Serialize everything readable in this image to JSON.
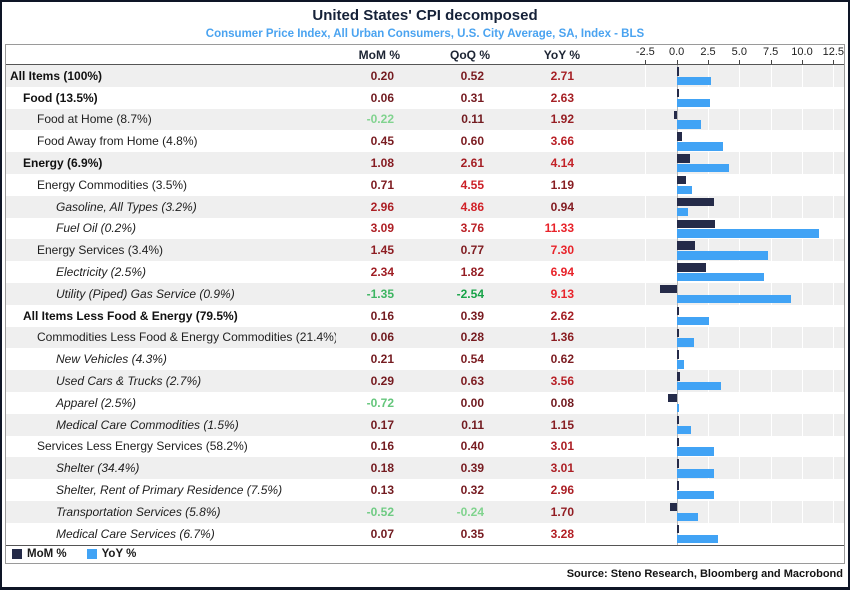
{
  "header": {
    "title": "United States' CPI decomposed",
    "subtitle": "Consumer Price Index, All Urban Consumers, U.S. City Average, SA, Index - BLS"
  },
  "columns": {
    "mom": "MoM %",
    "qoq": "QoQ %",
    "yoy": "YoY %"
  },
  "axis": {
    "xmin": -3.8,
    "xmax": 13.35,
    "ticks": [
      -2.5,
      0,
      2.5,
      5,
      7.5,
      10,
      12.5
    ],
    "tick_labels": [
      "-2.5",
      "0.0",
      "2.5",
      "5.0",
      "7.5",
      "10.0",
      "12.5"
    ]
  },
  "colors": {
    "mom_bar": "#252b49",
    "yoy_bar": "#41a3f5",
    "positive_low": "#701b20",
    "positive_high": "#e8232a",
    "negative_low": "#8ed998",
    "negative_high": "#18a348",
    "stripe": "#efefef",
    "title_navy": "#152138",
    "subtitle_blue": "#4aa3f0"
  },
  "rows": [
    {
      "label": "All Items (100%)",
      "level": 0,
      "bold": true,
      "values_bold": true,
      "italic": false,
      "mom": 0.2,
      "qoq": 0.52,
      "yoy": 2.71
    },
    {
      "label": "Food (13.5%)",
      "level": 1,
      "bold": true,
      "values_bold": false,
      "italic": false,
      "mom": 0.06,
      "qoq": 0.31,
      "yoy": 2.63
    },
    {
      "label": "Food at Home (8.7%)",
      "level": 2,
      "bold": false,
      "values_bold": false,
      "italic": false,
      "mom": -0.22,
      "qoq": 0.11,
      "yoy": 1.92
    },
    {
      "label": "Food Away from Home (4.8%)",
      "level": 2,
      "bold": false,
      "values_bold": false,
      "italic": false,
      "mom": 0.45,
      "qoq": 0.6,
      "yoy": 3.66
    },
    {
      "label": "Energy (6.9%)",
      "level": 1,
      "bold": true,
      "values_bold": true,
      "italic": false,
      "mom": 1.08,
      "qoq": 2.61,
      "yoy": 4.14
    },
    {
      "label": "Energy Commodities (3.5%)",
      "level": 2,
      "bold": false,
      "values_bold": false,
      "italic": false,
      "mom": 0.71,
      "qoq": 4.55,
      "yoy": 1.19
    },
    {
      "label": "Gasoline, All Types (3.2%)",
      "level": 3,
      "bold": false,
      "values_bold": false,
      "italic": true,
      "mom": 2.96,
      "qoq": 4.86,
      "yoy": 0.94
    },
    {
      "label": "Fuel Oil (0.2%)",
      "level": 3,
      "bold": false,
      "values_bold": false,
      "italic": true,
      "mom": 3.09,
      "qoq": 3.76,
      "yoy": 11.33
    },
    {
      "label": "Energy Services (3.4%)",
      "level": 2,
      "bold": false,
      "values_bold": false,
      "italic": false,
      "mom": 1.45,
      "qoq": 0.77,
      "yoy": 7.3
    },
    {
      "label": "Electricity (2.5%)",
      "level": 3,
      "bold": false,
      "values_bold": false,
      "italic": true,
      "mom": 2.34,
      "qoq": 1.82,
      "yoy": 6.94
    },
    {
      "label": "Utility (Piped) Gas Service (0.9%)",
      "level": 3,
      "bold": false,
      "values_bold": false,
      "italic": true,
      "mom": -1.35,
      "qoq": -2.54,
      "yoy": 9.13
    },
    {
      "label": "All Items Less Food & Energy (79.5%)",
      "level": 1,
      "bold": true,
      "values_bold": true,
      "italic": false,
      "mom": 0.16,
      "qoq": 0.39,
      "yoy": 2.62
    },
    {
      "label": "Commodities Less Food & Energy Commodities (21.4%)",
      "level": 2,
      "bold": false,
      "values_bold": false,
      "italic": false,
      "mom": 0.06,
      "qoq": 0.28,
      "yoy": 1.36
    },
    {
      "label": "New Vehicles (4.3%)",
      "level": 3,
      "bold": false,
      "values_bold": false,
      "italic": true,
      "mom": 0.21,
      "qoq": 0.54,
      "yoy": 0.62
    },
    {
      "label": "Used Cars & Trucks (2.7%)",
      "level": 3,
      "bold": false,
      "values_bold": false,
      "italic": true,
      "mom": 0.29,
      "qoq": 0.63,
      "yoy": 3.56
    },
    {
      "label": "Apparel (2.5%)",
      "level": 3,
      "bold": false,
      "values_bold": false,
      "italic": true,
      "mom": -0.72,
      "qoq": 0.0,
      "yoy": 0.08
    },
    {
      "label": "Medical Care Commodities (1.5%)",
      "level": 3,
      "bold": false,
      "values_bold": false,
      "italic": true,
      "mom": 0.17,
      "qoq": 0.11,
      "yoy": 1.15
    },
    {
      "label": "Services Less Energy Services (58.2%)",
      "level": 2,
      "bold": false,
      "values_bold": false,
      "italic": false,
      "mom": 0.16,
      "qoq": 0.4,
      "yoy": 3.01
    },
    {
      "label": "Shelter (34.4%)",
      "level": 3,
      "bold": false,
      "values_bold": false,
      "italic": true,
      "mom": 0.18,
      "qoq": 0.39,
      "yoy": 3.01
    },
    {
      "label": "Shelter, Rent of Primary Residence (7.5%)",
      "level": 3,
      "bold": false,
      "values_bold": false,
      "italic": true,
      "mom": 0.13,
      "qoq": 0.32,
      "yoy": 2.96
    },
    {
      "label": "Transportation Services (5.8%)",
      "level": 3,
      "bold": false,
      "values_bold": false,
      "italic": true,
      "mom": -0.52,
      "qoq": -0.24,
      "yoy": 1.7
    },
    {
      "label": "Medical Care Services (6.7%)",
      "level": 3,
      "bold": false,
      "values_bold": false,
      "italic": true,
      "mom": 0.07,
      "qoq": 0.35,
      "yoy": 3.28
    }
  ],
  "legend": [
    {
      "label": "MoM %",
      "color": "#252b49"
    },
    {
      "label": "YoY %",
      "color": "#41a3f5"
    }
  ],
  "source": "Source: Steno Research, Bloomberg and Macrobond",
  "chart_data": {
    "type": "bar",
    "orientation": "horizontal",
    "title": "United States' CPI decomposed",
    "subtitle": "Consumer Price Index, All Urban Consumers, U.S. City Average, SA, Index - BLS",
    "categories": [
      "All Items (100%)",
      "Food (13.5%)",
      "Food at Home (8.7%)",
      "Food Away from Home (4.8%)",
      "Energy (6.9%)",
      "Energy Commodities (3.5%)",
      "Gasoline, All Types (3.2%)",
      "Fuel Oil (0.2%)",
      "Energy Services (3.4%)",
      "Electricity (2.5%)",
      "Utility (Piped) Gas Service (0.9%)",
      "All Items Less Food & Energy (79.5%)",
      "Commodities Less Food & Energy Commodities (21.4%)",
      "New Vehicles (4.3%)",
      "Used Cars & Trucks (2.7%)",
      "Apparel (2.5%)",
      "Medical Care Commodities (1.5%)",
      "Services Less Energy Services (58.2%)",
      "Shelter (34.4%)",
      "Shelter, Rent of Primary Residence (7.5%)",
      "Transportation Services (5.8%)",
      "Medical Care Services (6.7%)"
    ],
    "series": [
      {
        "name": "MoM %",
        "plotted": true,
        "color": "#252b49",
        "values": [
          0.2,
          0.06,
          -0.22,
          0.45,
          1.08,
          0.71,
          2.96,
          3.09,
          1.45,
          2.34,
          -1.35,
          0.16,
          0.06,
          0.21,
          0.29,
          -0.72,
          0.17,
          0.16,
          0.18,
          0.13,
          -0.52,
          0.07
        ]
      },
      {
        "name": "QoQ %",
        "plotted": false,
        "values": [
          0.52,
          0.31,
          0.11,
          0.6,
          2.61,
          4.55,
          4.86,
          3.76,
          0.77,
          1.82,
          -2.54,
          0.39,
          0.28,
          0.54,
          0.63,
          0.0,
          0.11,
          0.4,
          0.39,
          0.32,
          -0.24,
          0.35
        ]
      },
      {
        "name": "YoY %",
        "plotted": true,
        "color": "#41a3f5",
        "values": [
          2.71,
          2.63,
          1.92,
          3.66,
          4.14,
          1.19,
          0.94,
          11.33,
          7.3,
          6.94,
          9.13,
          2.62,
          1.36,
          0.62,
          3.56,
          0.08,
          1.15,
          3.01,
          3.01,
          2.96,
          1.7,
          3.28
        ]
      }
    ],
    "xlim": [
      -2.5,
      12.5
    ],
    "xticks": [
      -2.5,
      0.0,
      2.5,
      5.0,
      7.5,
      10.0,
      12.5
    ],
    "grid": true,
    "legend_position": "bottom-left",
    "source": "Source: Steno Research, Bloomberg and Macrobond"
  }
}
